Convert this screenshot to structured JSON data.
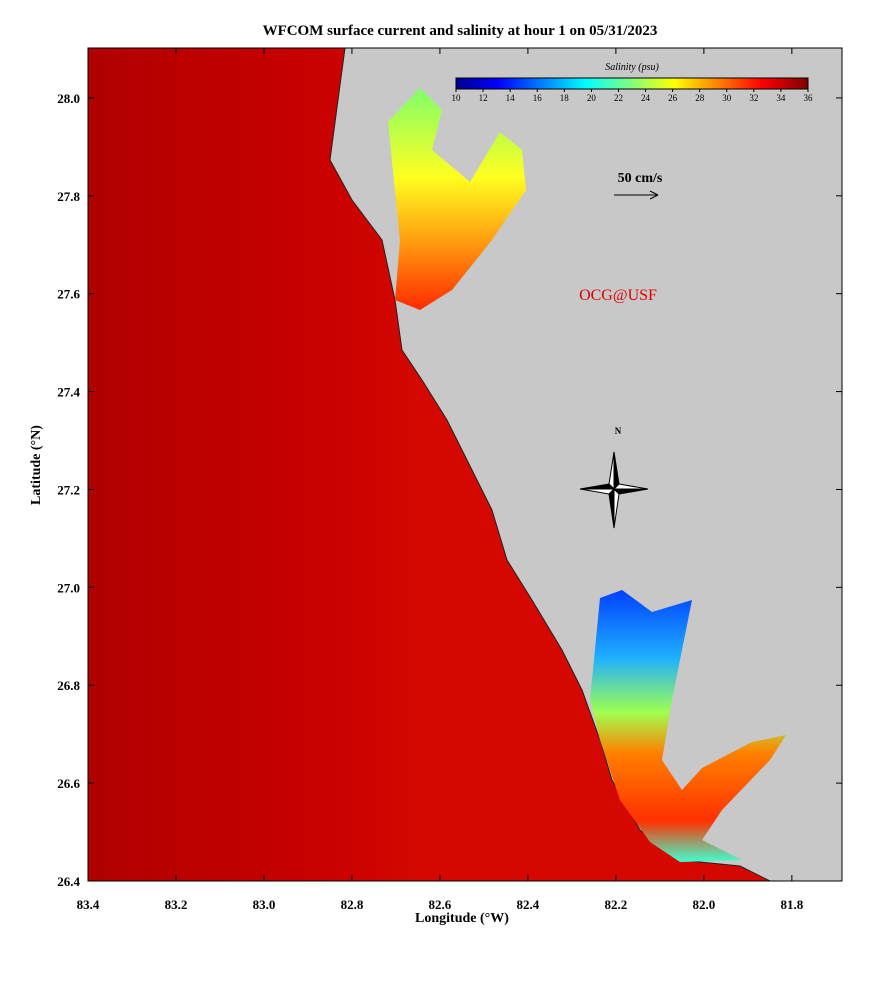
{
  "chart_data": {
    "type": "map",
    "title": "WFCOM surface current and salinity at hour 1 on 05/31/2023",
    "x_label": "Longitude (°W)",
    "y_label": "Latitude (°N)",
    "xlim": [
      83.4,
      81.686
    ],
    "xticks": [
      83.4,
      83.2,
      {
        "value": 83,
        "label": "83.0"
      },
      82.8,
      82.6,
      82.4,
      82.2,
      {
        "value": 82,
        "label": "82.0"
      },
      81.8
    ],
    "ylim": [
      26.4,
      28.102
    ],
    "yticks": [
      26.4,
      26.6,
      26.8,
      {
        "value": 27,
        "label": "27.0"
      },
      27.2,
      27.4,
      27.6,
      27.8,
      {
        "value": 28,
        "label": "28.0"
      }
    ],
    "colorbar": {
      "label": "Salinity (psu)",
      "lim": [
        10,
        36
      ],
      "ticks": [
        10,
        12,
        14,
        16,
        18,
        20,
        22,
        24,
        26,
        28,
        30,
        32,
        34,
        36
      ]
    },
    "scale_label": "50 cm/s",
    "credit": "OCG@USF",
    "compass_label": "N"
  }
}
